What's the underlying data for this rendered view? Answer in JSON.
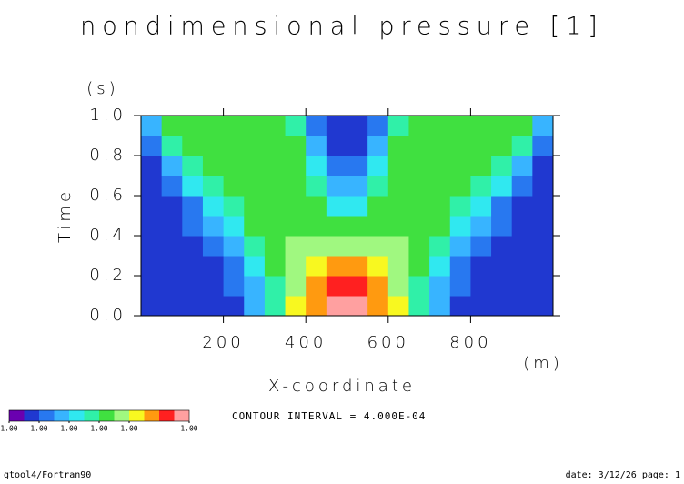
{
  "chart_data": {
    "type": "contour",
    "title": "nondimensional pressure [1]",
    "xlabel": "X-coordinate",
    "xunit": "(m)",
    "ylabel": "Time",
    "yunit": "(s)",
    "xlim": [
      0,
      1000
    ],
    "ylim": [
      0,
      1
    ],
    "xticks": [
      200,
      400,
      600,
      800
    ],
    "yticks": [
      {
        "value": 0,
        "label": "0.0"
      },
      0.2,
      0.4,
      0.6,
      0.8,
      {
        "value": 1,
        "label": "1.0"
      }
    ],
    "x": [
      25,
      75,
      125,
      175,
      225,
      275,
      325,
      375,
      425,
      475,
      525,
      575,
      625,
      675,
      725,
      775,
      825,
      875,
      925,
      975
    ],
    "y": [
      0.05,
      0.15,
      0.25,
      0.35,
      0.45,
      0.55,
      0.65,
      0.75,
      0.85,
      0.95
    ],
    "z": [
      [
        0.9982,
        0.9982,
        0.9982,
        0.9982,
        0.9982,
        0.999,
        0.9998,
        1.001,
        1.0014,
        1.0022,
        1.0022,
        1.0014,
        1.001,
        0.9998,
        0.999,
        0.9982,
        0.9982,
        0.9982,
        0.9982,
        0.9982
      ],
      [
        0.9982,
        0.9982,
        0.9982,
        0.9982,
        0.9986,
        0.999,
        0.9998,
        1.0006,
        1.0014,
        1.0018,
        1.0018,
        1.0014,
        1.0006,
        0.9998,
        0.999,
        0.9986,
        0.9982,
        0.9982,
        0.9982,
        0.9982
      ],
      [
        0.9982,
        0.9982,
        0.9982,
        0.9982,
        0.9986,
        0.9994,
        1.0002,
        1.0006,
        1.001,
        1.0014,
        1.0014,
        1.001,
        1.0006,
        1.0002,
        0.9994,
        0.9986,
        0.9982,
        0.9982,
        0.9982,
        0.9982
      ],
      [
        0.9982,
        0.9982,
        0.9982,
        0.9986,
        0.999,
        0.9998,
        1.0002,
        1.0006,
        1.0006,
        1.0006,
        1.0006,
        1.0006,
        1.0006,
        1.0002,
        0.9998,
        0.999,
        0.9986,
        0.9982,
        0.9982,
        0.9982
      ],
      [
        0.9982,
        0.9982,
        0.9986,
        0.999,
        0.9994,
        1.0002,
        1.0002,
        1.0002,
        1.0002,
        1.0002,
        1.0002,
        1.0002,
        1.0002,
        1.0002,
        1.0002,
        0.9994,
        0.999,
        0.9986,
        0.9982,
        0.9982
      ],
      [
        0.9982,
        0.9982,
        0.9986,
        0.9994,
        0.9998,
        1.0002,
        1.0002,
        1.0002,
        1.0002,
        0.9994,
        0.9994,
        1.0002,
        1.0002,
        1.0002,
        1.0002,
        0.9998,
        0.9994,
        0.9986,
        0.9982,
        0.9982
      ],
      [
        0.9982,
        0.9986,
        0.9994,
        0.9998,
        1.0002,
        1.0002,
        1.0002,
        1.0002,
        0.9998,
        0.999,
        0.999,
        0.9998,
        1.0002,
        1.0002,
        1.0002,
        1.0002,
        0.9998,
        0.9994,
        0.9986,
        0.9982
      ],
      [
        0.9982,
        0.999,
        0.9998,
        1.0002,
        1.0002,
        1.0002,
        1.0002,
        1.0002,
        0.9994,
        0.9986,
        0.9986,
        0.9994,
        1.0002,
        1.0002,
        1.0002,
        1.0002,
        1.0002,
        0.9998,
        0.999,
        0.9982
      ],
      [
        0.9986,
        0.9998,
        1.0002,
        1.0002,
        1.0002,
        1.0002,
        1.0002,
        1.0002,
        0.999,
        0.9982,
        0.9982,
        0.999,
        1.0002,
        1.0002,
        1.0002,
        1.0002,
        1.0002,
        1.0002,
        0.9998,
        0.9986
      ],
      [
        0.999,
        1.0002,
        1.0002,
        1.0002,
        1.0002,
        1.0002,
        1.0002,
        0.9998,
        0.9986,
        0.9982,
        0.9982,
        0.9986,
        0.9998,
        1.0002,
        1.0002,
        1.0002,
        1.0002,
        1.0002,
        1.0002,
        0.999
      ]
    ],
    "levels": [
      0.9976,
      0.998,
      0.9984,
      0.9988,
      0.9992,
      0.9996,
      1.0,
      1.0004,
      1.0008,
      1.0012,
      1.0016,
      1.002,
      1.0024
    ],
    "colors": [
      "#6a00b0",
      "#2038d0",
      "#2878f0",
      "#38b4ff",
      "#30e8f0",
      "#30f0a8",
      "#40e040",
      "#a0f880",
      "#f8f820",
      "#ff9a10",
      "#ff2020",
      "#ffa0a0"
    ],
    "colorbar_ticks": [
      {
        "value": 0.9976,
        "label": "1.00"
      },
      {
        "value": 0.9984,
        "label": "1.00"
      },
      {
        "value": 0.9992,
        "label": "1.00"
      },
      {
        "value": 1.0,
        "label": "1.00"
      },
      {
        "value": 1.0008,
        "label": "1.00"
      },
      {
        "value": 1.0024,
        "label": "1.00"
      }
    ],
    "contour_interval": "CONTOUR INTERVAL = 4.000E-04",
    "footer_left": "gtool4/Fortran90",
    "footer_right": "date: 3/12/26 page: 1"
  }
}
